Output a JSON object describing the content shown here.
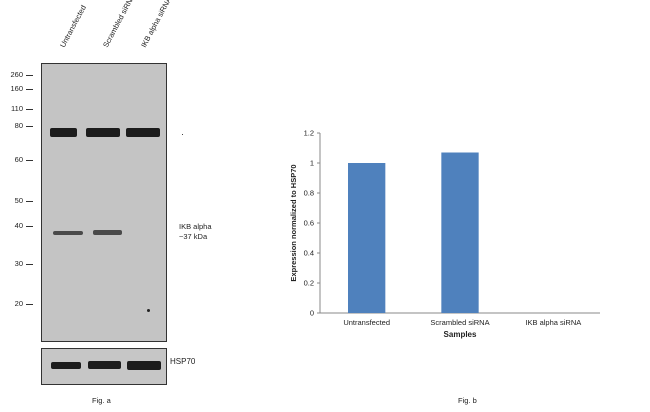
{
  "blot": {
    "lanes": [
      "Untransfected",
      "Scrambled siRNA",
      "IKB alpha siRNA"
    ],
    "mw_markers": [
      "260",
      "160",
      "110",
      "80",
      "60",
      "50",
      "40",
      "30",
      "20"
    ],
    "target_label_line1": "IKB alpha",
    "target_label_line2": "~37 kDa",
    "control_label": "HSP70",
    "caption": "Fig. a"
  },
  "chart_data": {
    "type": "bar",
    "categories": [
      "Untransfected",
      "Scrambled siRNA",
      "IKB alpha siRNA"
    ],
    "values": [
      1.0,
      1.07,
      0.0
    ],
    "title": "",
    "xlabel": "Samples",
    "ylabel": "Expression  normalized to HSP70",
    "ylim": [
      0,
      1.2
    ],
    "yticks": [
      "0",
      "0.2",
      "0.4",
      "0.6",
      "0.8",
      "1",
      "1.2"
    ],
    "bar_color": "#4f81bd",
    "grid": false,
    "caption": "Fig. b"
  }
}
